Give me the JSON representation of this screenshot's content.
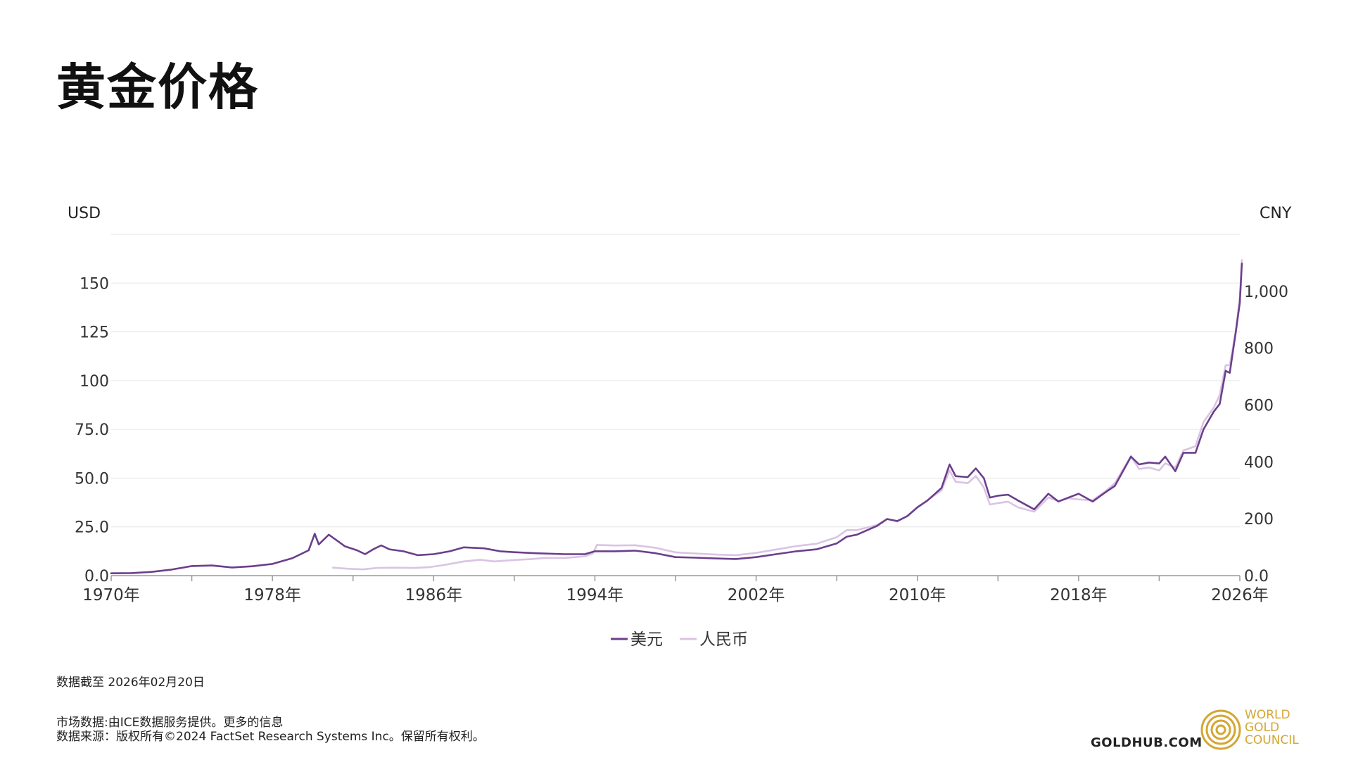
{
  "title": "黄金价格",
  "notes": {
    "data_date": "数据截至 2026年02月20日",
    "line1": "市场数据:由ICE数据服务提供。更多的信息",
    "line2": "数据来源：版权所有©2024 FactSet Research Systems Inc。保留所有权利。"
  },
  "branding": {
    "site": "GOLDHUB.COM",
    "logo_lines": [
      "WORLD",
      "GOLD",
      "COUNCIL"
    ],
    "logo_icon": "concentric-circles-icon"
  },
  "colors": {
    "usd": "#6b3f8c",
    "cny": "#d9c4e3",
    "gold": "#d4a634",
    "grid": "#e6e6e6",
    "axis": "#999999"
  },
  "chart_data": {
    "type": "line",
    "xlabel": "",
    "left_axis_label": "USD",
    "right_axis_label": "CNY",
    "xlim": [
      1970,
      2026
    ],
    "ylim_left": [
      0,
      175
    ],
    "ylim_right": [
      0,
      1200
    ],
    "x_ticks": [
      1970,
      1978,
      1986,
      1994,
      2002,
      2010,
      2018,
      2026
    ],
    "x_tick_labels": [
      "1970年",
      "1978年",
      "1986年",
      "1994年",
      "2002年",
      "2010年",
      "2018年",
      "2026年"
    ],
    "x_minor_ticks": [
      1974,
      1982,
      1990,
      1998,
      2006,
      2014,
      2022
    ],
    "left_ticks": [
      0,
      25,
      50,
      75,
      100,
      125,
      150
    ],
    "left_tick_labels": [
      "0.0",
      "25.0",
      "50.0",
      "75.0",
      "100",
      "125",
      "150"
    ],
    "right_ticks": [
      0,
      200,
      400,
      600,
      800,
      1000
    ],
    "right_tick_labels": [
      "0.0",
      "200",
      "400",
      "600",
      "800",
      "1,000"
    ],
    "grid": true,
    "legend_position": "bottom-center",
    "series": [
      {
        "name": "美元",
        "axis": "left",
        "points": [
          [
            1970,
            1.2
          ],
          [
            1971,
            1.3
          ],
          [
            1972,
            1.9
          ],
          [
            1973,
            3.1
          ],
          [
            1974,
            4.9
          ],
          [
            1975,
            5.2
          ],
          [
            1976,
            4.2
          ],
          [
            1977,
            4.8
          ],
          [
            1978,
            6.0
          ],
          [
            1979,
            9.0
          ],
          [
            1979.8,
            13.0
          ],
          [
            1980.1,
            21.5
          ],
          [
            1980.3,
            16.0
          ],
          [
            1980.8,
            21.0
          ],
          [
            1981.2,
            18.0
          ],
          [
            1981.6,
            15.0
          ],
          [
            1982.2,
            13.0
          ],
          [
            1982.6,
            11.0
          ],
          [
            1983.0,
            13.5
          ],
          [
            1983.4,
            15.5
          ],
          [
            1983.8,
            13.5
          ],
          [
            1984.5,
            12.5
          ],
          [
            1985.2,
            10.5
          ],
          [
            1986.0,
            11.0
          ],
          [
            1986.8,
            12.5
          ],
          [
            1987.5,
            14.5
          ],
          [
            1988.5,
            14.0
          ],
          [
            1989.3,
            12.5
          ],
          [
            1990.0,
            12.0
          ],
          [
            1991.0,
            11.5
          ],
          [
            1992.5,
            11.0
          ],
          [
            1993.5,
            11.0
          ],
          [
            1994.0,
            12.5
          ],
          [
            1995.0,
            12.5
          ],
          [
            1996.0,
            12.8
          ],
          [
            1997.0,
            11.5
          ],
          [
            1998.0,
            9.5
          ],
          [
            1999.0,
            9.2
          ],
          [
            2000.0,
            8.8
          ],
          [
            2001.0,
            8.5
          ],
          [
            2002.0,
            9.5
          ],
          [
            2003.0,
            11.0
          ],
          [
            2004.0,
            12.5
          ],
          [
            2005.0,
            13.5
          ],
          [
            2006.0,
            16.5
          ],
          [
            2006.5,
            20.0
          ],
          [
            2007.0,
            21.0
          ],
          [
            2008.0,
            25.5
          ],
          [
            2008.5,
            29.0
          ],
          [
            2009.0,
            28.0
          ],
          [
            2009.5,
            30.5
          ],
          [
            2010.0,
            35.0
          ],
          [
            2010.5,
            38.5
          ],
          [
            2011.2,
            45.0
          ],
          [
            2011.6,
            57.0
          ],
          [
            2011.9,
            51.0
          ],
          [
            2012.5,
            50.5
          ],
          [
            2012.9,
            55.0
          ],
          [
            2013.3,
            50.0
          ],
          [
            2013.6,
            40.0
          ],
          [
            2014.0,
            41.0
          ],
          [
            2014.5,
            41.5
          ],
          [
            2015.0,
            38.5
          ],
          [
            2015.8,
            34.0
          ],
          [
            2016.5,
            42.0
          ],
          [
            2017.0,
            38.0
          ],
          [
            2017.5,
            40.0
          ],
          [
            2018.0,
            42.0
          ],
          [
            2018.7,
            38.0
          ],
          [
            2019.3,
            42.5
          ],
          [
            2019.8,
            46.0
          ],
          [
            2020.6,
            61.0
          ],
          [
            2021.0,
            57.0
          ],
          [
            2021.5,
            58.0
          ],
          [
            2022.0,
            57.5
          ],
          [
            2022.3,
            61.0
          ],
          [
            2022.8,
            53.5
          ],
          [
            2023.2,
            63.0
          ],
          [
            2023.8,
            63.0
          ],
          [
            2024.2,
            75.0
          ],
          [
            2024.7,
            84.0
          ],
          [
            2025.0,
            88.0
          ],
          [
            2025.3,
            105.0
          ],
          [
            2025.5,
            104.0
          ],
          [
            2025.8,
            125.0
          ],
          [
            2026.0,
            140.0
          ],
          [
            2026.1,
            160.0
          ]
        ]
      },
      {
        "name": "人民币",
        "axis": "right",
        "points": [
          [
            1981.0,
            28
          ],
          [
            1981.8,
            24
          ],
          [
            1982.5,
            22
          ],
          [
            1983.2,
            27
          ],
          [
            1984.0,
            28
          ],
          [
            1985.0,
            27
          ],
          [
            1985.8,
            30
          ],
          [
            1986.5,
            37
          ],
          [
            1987.5,
            50
          ],
          [
            1988.3,
            56
          ],
          [
            1989.0,
            50
          ],
          [
            1990.0,
            55
          ],
          [
            1990.8,
            58
          ],
          [
            1991.5,
            62
          ],
          [
            1992.5,
            62
          ],
          [
            1993.5,
            68
          ],
          [
            1993.9,
            78
          ],
          [
            1994.1,
            108
          ],
          [
            1995.0,
            106
          ],
          [
            1996.0,
            107
          ],
          [
            1997.0,
            98
          ],
          [
            1998.0,
            82
          ],
          [
            1999.0,
            78
          ],
          [
            2000.0,
            74
          ],
          [
            2001.0,
            72
          ],
          [
            2002.0,
            80
          ],
          [
            2003.0,
            92
          ],
          [
            2004.0,
            104
          ],
          [
            2005.0,
            112
          ],
          [
            2006.0,
            135
          ],
          [
            2006.5,
            160
          ],
          [
            2007.0,
            160
          ],
          [
            2008.0,
            178
          ],
          [
            2008.5,
            200
          ],
          [
            2009.0,
            190
          ],
          [
            2009.5,
            210
          ],
          [
            2010.0,
            240
          ],
          [
            2010.5,
            265
          ],
          [
            2011.2,
            300
          ],
          [
            2011.6,
            370
          ],
          [
            2011.9,
            330
          ],
          [
            2012.5,
            325
          ],
          [
            2012.9,
            350
          ],
          [
            2013.3,
            310
          ],
          [
            2013.6,
            250
          ],
          [
            2014.0,
            255
          ],
          [
            2014.5,
            260
          ],
          [
            2015.0,
            240
          ],
          [
            2015.8,
            225
          ],
          [
            2016.5,
            275
          ],
          [
            2017.0,
            262
          ],
          [
            2017.5,
            272
          ],
          [
            2018.0,
            268
          ],
          [
            2018.7,
            265
          ],
          [
            2019.3,
            295
          ],
          [
            2019.8,
            325
          ],
          [
            2020.6,
            420
          ],
          [
            2021.0,
            375
          ],
          [
            2021.5,
            380
          ],
          [
            2022.0,
            370
          ],
          [
            2022.3,
            395
          ],
          [
            2022.8,
            380
          ],
          [
            2023.2,
            440
          ],
          [
            2023.8,
            455
          ],
          [
            2024.2,
            540
          ],
          [
            2024.7,
            590
          ],
          [
            2025.0,
            635
          ],
          [
            2025.3,
            740
          ],
          [
            2025.5,
            740
          ],
          [
            2025.8,
            860
          ],
          [
            2026.0,
            980
          ],
          [
            2026.1,
            1110
          ]
        ]
      }
    ]
  }
}
